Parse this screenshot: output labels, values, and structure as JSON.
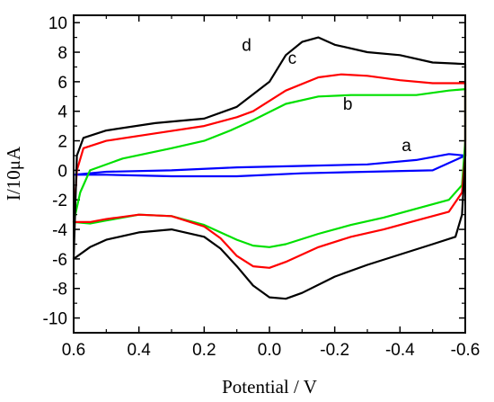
{
  "chart_data": {
    "type": "line",
    "title": "",
    "xlabel": "Potential / V",
    "ylabel": "I/10μA",
    "xlim": [
      0.6,
      -0.6
    ],
    "ylim": [
      -11,
      10.5
    ],
    "x_reversed": true,
    "grid": false,
    "legend": "none",
    "xticks": [
      0.6,
      0.4,
      0.2,
      0.0,
      -0.2,
      -0.4,
      -0.6
    ],
    "xtick_labels": [
      "0.6",
      "0.4",
      "0.2",
      "0.0",
      "-0.2",
      "-0.4",
      "-0.6"
    ],
    "yticks": [
      10,
      8,
      6,
      4,
      2,
      0,
      -2,
      -4,
      -6,
      -8,
      -10
    ],
    "ytick_labels": [
      "10",
      "8",
      "6",
      "4",
      "2",
      "0",
      "-2",
      "-4",
      "-6",
      "-8",
      "-10"
    ],
    "series": [
      {
        "name": "a",
        "color": "#0000ff",
        "x": [
          0.6,
          0.5,
          0.3,
          0.1,
          -0.1,
          -0.3,
          -0.45,
          -0.55,
          -0.6,
          -0.6,
          -0.5,
          -0.3,
          -0.1,
          0.1,
          0.3,
          0.5,
          0.6
        ],
        "y": [
          -0.3,
          -0.1,
          0.0,
          0.2,
          0.3,
          0.4,
          0.7,
          1.1,
          1.0,
          1.0,
          0.0,
          -0.1,
          -0.2,
          -0.4,
          -0.4,
          -0.3,
          -0.3
        ]
      },
      {
        "name": "b",
        "color": "#00e000",
        "x": [
          0.6,
          0.58,
          0.55,
          0.45,
          0.3,
          0.2,
          0.12,
          0.05,
          -0.05,
          -0.15,
          -0.25,
          -0.35,
          -0.45,
          -0.55,
          -0.6,
          -0.6,
          -0.59,
          -0.55,
          -0.45,
          -0.35,
          -0.25,
          -0.15,
          -0.05,
          0.0,
          0.05,
          0.1,
          0.15,
          0.2,
          0.3,
          0.4,
          0.5,
          0.55,
          0.6
        ],
        "y": [
          -3.5,
          -1.5,
          0.0,
          0.8,
          1.5,
          2.0,
          2.7,
          3.4,
          4.5,
          5.0,
          5.1,
          5.1,
          5.1,
          5.4,
          5.5,
          2.0,
          -1.0,
          -2.0,
          -2.6,
          -3.2,
          -3.7,
          -4.3,
          -5.0,
          -5.2,
          -5.1,
          -4.7,
          -4.2,
          -3.7,
          -3.1,
          -3.0,
          -3.4,
          -3.6,
          -3.5
        ]
      },
      {
        "name": "c",
        "color": "#ff0000",
        "x": [
          0.6,
          0.59,
          0.57,
          0.5,
          0.35,
          0.2,
          0.1,
          0.05,
          -0.05,
          -0.15,
          -0.22,
          -0.3,
          -0.4,
          -0.5,
          -0.6,
          -0.6,
          -0.59,
          -0.55,
          -0.45,
          -0.35,
          -0.25,
          -0.15,
          -0.05,
          0.0,
          0.05,
          0.1,
          0.15,
          0.2,
          0.3,
          0.4,
          0.5,
          0.55,
          0.6
        ],
        "y": [
          -3.5,
          0.0,
          1.5,
          2.0,
          2.5,
          3.0,
          3.6,
          4.0,
          5.4,
          6.3,
          6.5,
          6.4,
          6.1,
          5.9,
          5.9,
          1.0,
          -1.5,
          -2.8,
          -3.4,
          -4.0,
          -4.5,
          -5.2,
          -6.2,
          -6.6,
          -6.5,
          -5.8,
          -4.6,
          -3.8,
          -3.1,
          -3.0,
          -3.3,
          -3.5,
          -3.5
        ]
      },
      {
        "name": "d",
        "color": "#000000",
        "x": [
          0.6,
          0.59,
          0.57,
          0.5,
          0.35,
          0.2,
          0.1,
          0.0,
          -0.05,
          -0.1,
          -0.15,
          -0.2,
          -0.3,
          -0.4,
          -0.5,
          -0.6,
          -0.6,
          -0.59,
          -0.57,
          -0.5,
          -0.4,
          -0.3,
          -0.2,
          -0.1,
          -0.05,
          0.0,
          0.05,
          0.1,
          0.15,
          0.2,
          0.3,
          0.4,
          0.5,
          0.55,
          0.6
        ],
        "y": [
          -6.0,
          1.0,
          2.2,
          2.7,
          3.2,
          3.5,
          4.3,
          6.0,
          7.8,
          8.7,
          9.0,
          8.5,
          8.0,
          7.8,
          7.3,
          7.2,
          1.0,
          -3.0,
          -4.5,
          -5.0,
          -5.7,
          -6.4,
          -7.2,
          -8.3,
          -8.7,
          -8.6,
          -7.8,
          -6.5,
          -5.3,
          -4.5,
          -4.0,
          -4.2,
          -4.7,
          -5.2,
          -6.0
        ]
      }
    ],
    "curve_labels": [
      {
        "text": "a",
        "series": "a",
        "x": -0.42,
        "y": 1.3
      },
      {
        "text": "b",
        "series": "b",
        "x": -0.24,
        "y": 4.1
      },
      {
        "text": "c",
        "series": "c",
        "x": -0.07,
        "y": 7.2
      },
      {
        "text": "d",
        "series": "d",
        "x": 0.07,
        "y": 8.1
      }
    ]
  }
}
